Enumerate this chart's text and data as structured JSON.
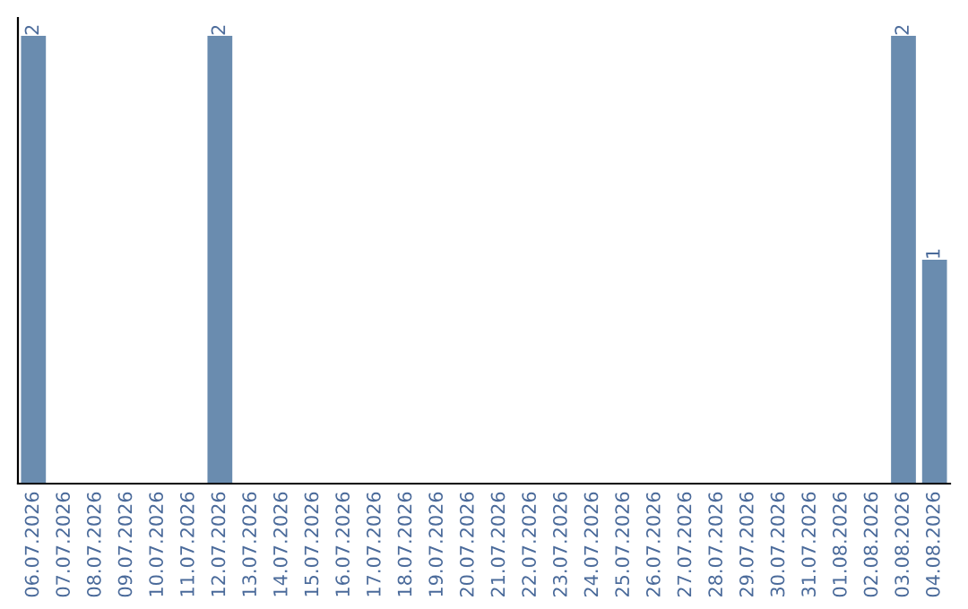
{
  "chart_data": {
    "type": "bar",
    "categories": [
      "06.07.2026",
      "07.07.2026",
      "08.07.2026",
      "09.07.2026",
      "10.07.2026",
      "11.07.2026",
      "12.07.2026",
      "13.07.2026",
      "14.07.2026",
      "15.07.2026",
      "16.07.2026",
      "17.07.2026",
      "18.07.2026",
      "19.07.2026",
      "20.07.2026",
      "21.07.2026",
      "22.07.2026",
      "23.07.2026",
      "24.07.2026",
      "25.07.2026",
      "26.07.2026",
      "27.07.2026",
      "28.07.2026",
      "29.07.2026",
      "30.07.2026",
      "31.07.2026",
      "01.08.2026",
      "02.08.2026",
      "03.08.2026",
      "04.08.2026"
    ],
    "values": [
      2,
      0,
      0,
      0,
      0,
      0,
      2,
      0,
      0,
      0,
      0,
      0,
      0,
      0,
      0,
      0,
      0,
      0,
      0,
      0,
      0,
      0,
      0,
      0,
      0,
      0,
      0,
      0,
      2,
      1
    ],
    "value_labels": [
      "2",
      null,
      null,
      null,
      null,
      null,
      "2",
      null,
      null,
      null,
      null,
      null,
      null,
      null,
      null,
      null,
      null,
      null,
      null,
      null,
      null,
      null,
      null,
      null,
      null,
      null,
      null,
      null,
      "2",
      "1"
    ],
    "color": "#6a8caf",
    "ylim": [
      0,
      2.08
    ],
    "tick_labels": "x",
    "grid": false,
    "legend": false
  }
}
